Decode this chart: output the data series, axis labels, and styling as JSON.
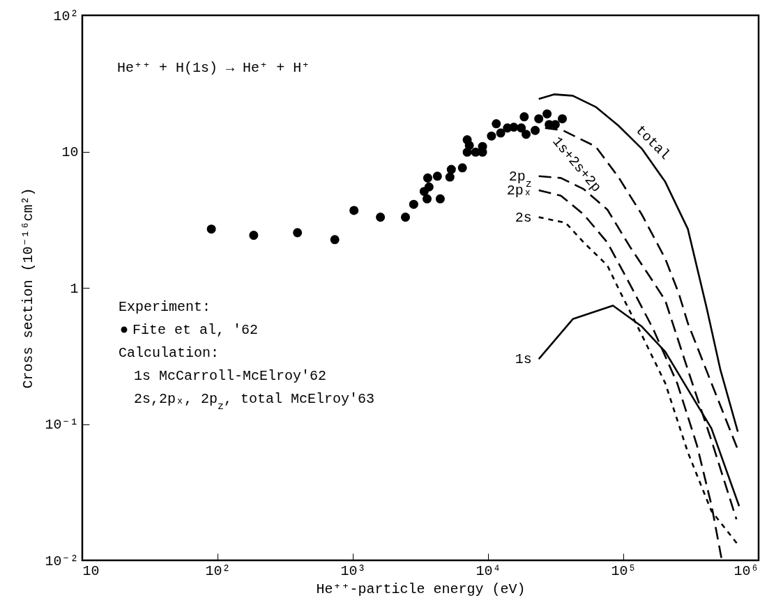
{
  "chart_data": {
    "type": "line",
    "xlabel": "He⁺⁺-particle energy (eV)",
    "ylabel": "Cross section (10⁻¹⁶cm²)",
    "log": "xy",
    "grid": false,
    "xlim": [
      10,
      1000000
    ],
    "xticks": [
      10,
      {
        "value": 100,
        "label": "10²"
      },
      {
        "value": 1000,
        "label": "10³"
      },
      {
        "value": 10000,
        "label": "10⁴"
      },
      {
        "value": 100000,
        "label": "10⁵"
      },
      {
        "value": 1000000,
        "label": "10⁶"
      }
    ],
    "ylim": [
      0.01,
      100
    ],
    "yticks": [
      {
        "value": 0.01,
        "label": "10⁻²"
      },
      {
        "value": 0.1,
        "label": "10⁻¹"
      },
      1,
      10,
      {
        "value": 100,
        "label": "10²"
      }
    ],
    "annotations": [
      "He⁺⁺ + H(1s) → He⁺ + H⁺",
      "Experiment:",
      "Calculation:",
      "1s McCarroll-McElroy'62",
      "2s,2pₓ, 2p$_{z}$, total McElroy'63"
    ],
    "series": [
      {
        "name": "Fite et al, '62",
        "type": "scatter",
        "marker": "circle",
        "color": "#000000",
        "x": [
          90,
          185,
          390,
          736,
          1020,
          1600,
          2450,
          2820,
          3370,
          3580,
          3660,
          3540,
          4430,
          4220,
          5220,
          5350,
          6460,
          7010,
          7010,
          7270,
          8090,
          9100,
          9100,
          10600,
          11500,
          12400,
          13900,
          15500,
          17600,
          18500,
          19100,
          22300,
          23700,
          27300,
          28300,
          31400,
          35400
        ],
        "values": [
          2.7,
          2.43,
          2.54,
          2.26,
          3.7,
          3.3,
          3.3,
          4.1,
          5.1,
          6.4,
          5.5,
          4.5,
          4.5,
          6.6,
          6.5,
          7.4,
          7.6,
          12.2,
          9.9,
          11.1,
          9.9,
          10.9,
          9.9,
          13.0,
          16.0,
          13.7,
          14.9,
          15.1,
          14.9,
          18.0,
          13.4,
          14.3,
          17.4,
          18.9,
          15.8,
          15.8,
          17.4
        ]
      },
      {
        "name": "total",
        "line_style": "solid",
        "color": "#000000",
        "x": [
          23700,
          30700,
          42300,
          62400,
          92000,
          137000,
          204000,
          300000,
          412000,
          522000,
          702000
        ],
        "values": [
          24.3,
          26.3,
          25.7,
          21.3,
          15.5,
          10.5,
          6.0,
          2.7,
          0.72,
          0.25,
          0.088
        ]
      },
      {
        "name": "1s+2s+2p",
        "line_style": "dashed",
        "color": "#000000",
        "x": [
          26400,
          35800,
          62400,
          92000,
          137000,
          204000,
          257000,
          300000,
          448000,
          702000
        ],
        "values": [
          14.9,
          14.3,
          10.9,
          6.5,
          3.45,
          1.64,
          0.91,
          0.55,
          0.2,
          0.065
        ]
      },
      {
        "name": "2p$_{z}$",
        "line_style": "dashed",
        "color": "#000000",
        "x": [
          23700,
          34500,
          51000,
          76200,
          112000,
          166000,
          204000,
          300000,
          448000,
          686000
        ],
        "values": [
          6.6,
          6.4,
          5.3,
          3.75,
          2.0,
          1.11,
          0.81,
          0.25,
          0.076,
          0.02
        ]
      },
      {
        "name": "2pₓ",
        "line_style": "dashed",
        "color": "#000000",
        "x": [
          23700,
          34500,
          51000,
          76200,
          112000,
          166000,
          250000,
          350000,
          450000,
          535000
        ],
        "values": [
          5.2,
          4.75,
          3.45,
          2.15,
          1.06,
          0.5,
          0.2,
          0.07,
          0.025,
          0.01
        ]
      },
      {
        "name": "2s",
        "line_style": "dotted",
        "color": "#000000",
        "x": [
          23700,
          37500,
          51000,
          76200,
          92000,
          137000,
          204000,
          300000,
          448000,
          718000
        ],
        "values": [
          3.3,
          3.0,
          2.15,
          1.46,
          0.99,
          0.45,
          0.2,
          0.062,
          0.023,
          0.0127
        ]
      },
      {
        "name": "1s",
        "line_style": "solid",
        "color": "#000000",
        "x": [
          23700,
          42300,
          83800,
          137000,
          204000,
          300000,
          448000,
          718000
        ],
        "values": [
          0.3,
          0.59,
          0.74,
          0.52,
          0.34,
          0.18,
          0.093,
          0.025
        ]
      }
    ]
  }
}
